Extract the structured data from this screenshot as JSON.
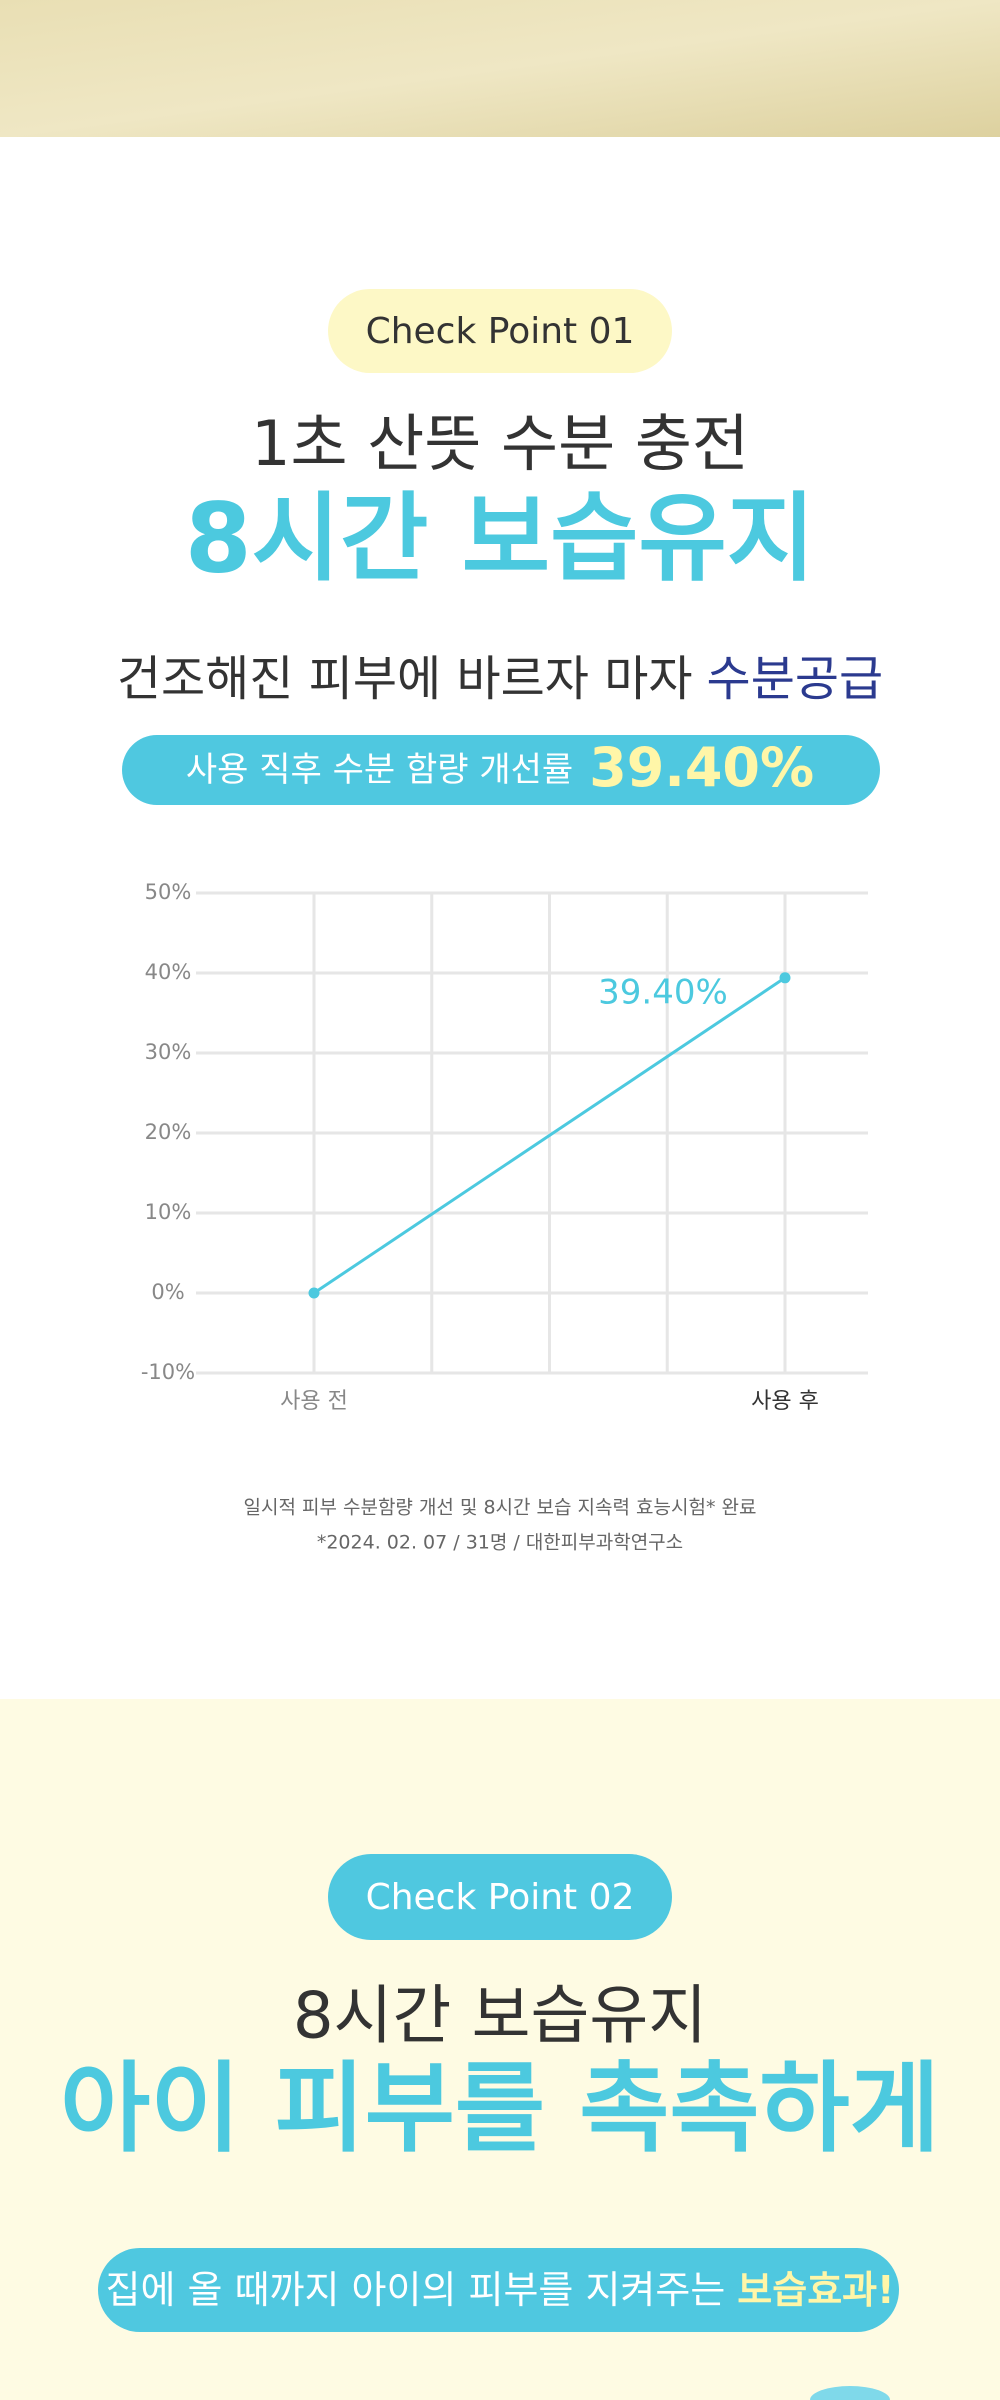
{
  "section1": {
    "badge": "Check Point 01",
    "subtitle": "1초 산뜻 수분 충전",
    "title": "8시간 보습유지",
    "description": "건조해진 피부에 바르자 마자",
    "description_highlight": "수분공급",
    "stat_label": "사용 직후 수분 함량 개선률",
    "stat_value": "39.40%"
  },
  "chart_data": {
    "type": "line",
    "categories": [
      "사용 전",
      "사용 후"
    ],
    "values": [
      0,
      39.4
    ],
    "value_labels": [
      null,
      "39.40%"
    ],
    "color": "#4cc9df",
    "ylim": [
      -10,
      50
    ],
    "yticks": [
      {
        "value": -10,
        "label": "-10%"
      },
      {
        "value": 0,
        "label": "0%"
      },
      {
        "value": 10,
        "label": "10%"
      },
      {
        "value": 20,
        "label": "20%"
      },
      {
        "value": 30,
        "label": "30%"
      },
      {
        "value": 40,
        "label": "40%"
      },
      {
        "value": 50,
        "label": "50%"
      }
    ],
    "grid": true
  },
  "footnote": [
    "일시적 피부 수분함량 개선 및 8시간 보습 지속력 효능시험* 완료",
    "*2024. 02. 07 / 31명 / 대한피부과학연구소"
  ],
  "section2": {
    "badge": "Check Point 02",
    "subtitle": "8시간 보습유지",
    "title": "아이 피부를 촉촉하게",
    "banner": "집에 올 때까지 아이의 피부를 지켜주는",
    "banner_highlight": "보습효과!"
  }
}
